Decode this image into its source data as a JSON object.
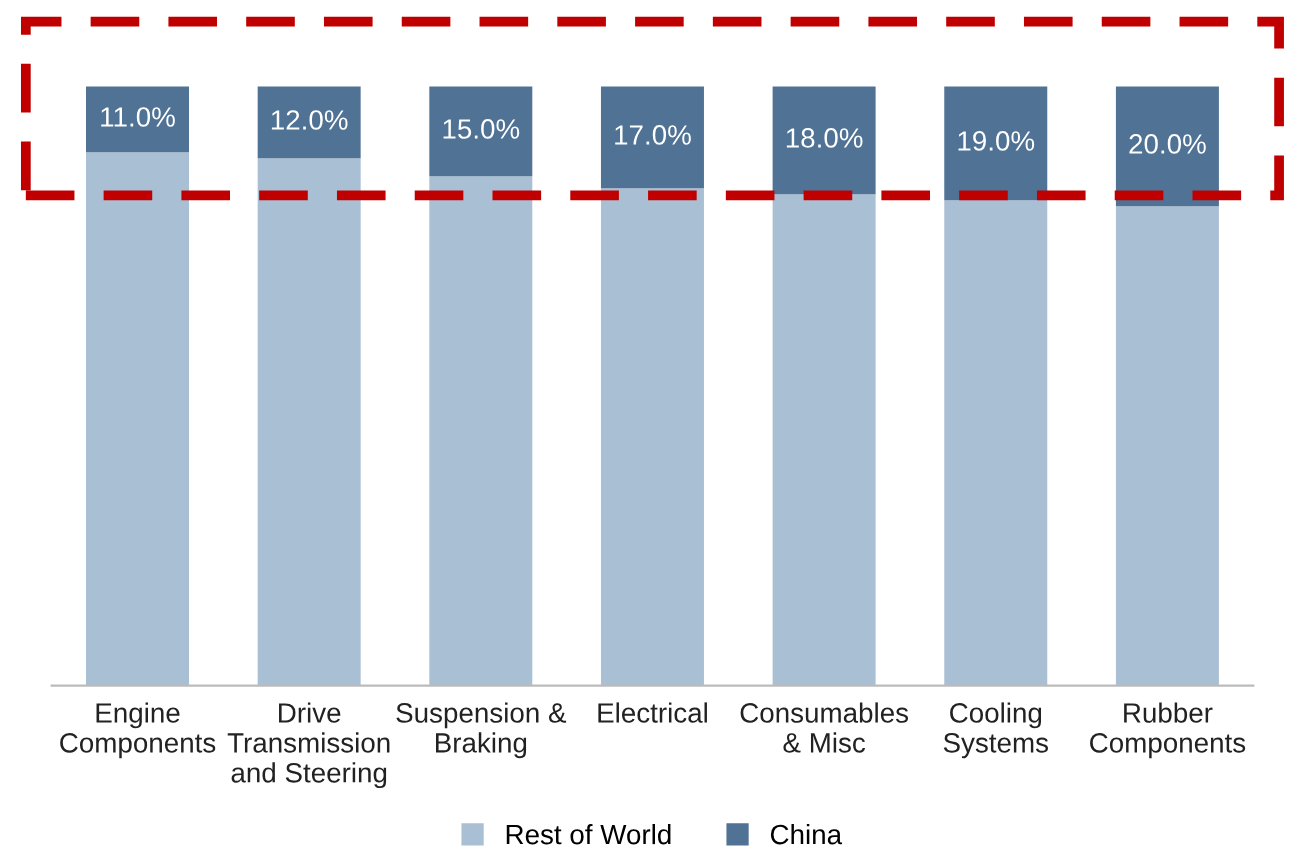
{
  "chart_data": {
    "type": "bar",
    "stacked": true,
    "categories": [
      "Engine\nComponents",
      "Drive\nTransmission\nand Steering",
      "Suspension &\nBraking",
      "Electrical",
      "Consumables\n& Misc",
      "Cooling\nSystems",
      "Rubber\nComponents"
    ],
    "series": [
      {
        "name": "Rest of World",
        "color": "#a9bfd3",
        "values": [
          89,
          88,
          85,
          83,
          82,
          81,
          80
        ]
      },
      {
        "name": "China",
        "color": "#4f7295",
        "values": [
          11,
          12,
          15,
          17,
          18,
          19,
          20
        ],
        "value_labels": [
          "11.0%",
          "12.0%",
          "15.0%",
          "17.0%",
          "18.0%",
          "19.0%",
          "20.0%"
        ]
      }
    ],
    "legend": "bottom",
    "grid": false
  }
}
